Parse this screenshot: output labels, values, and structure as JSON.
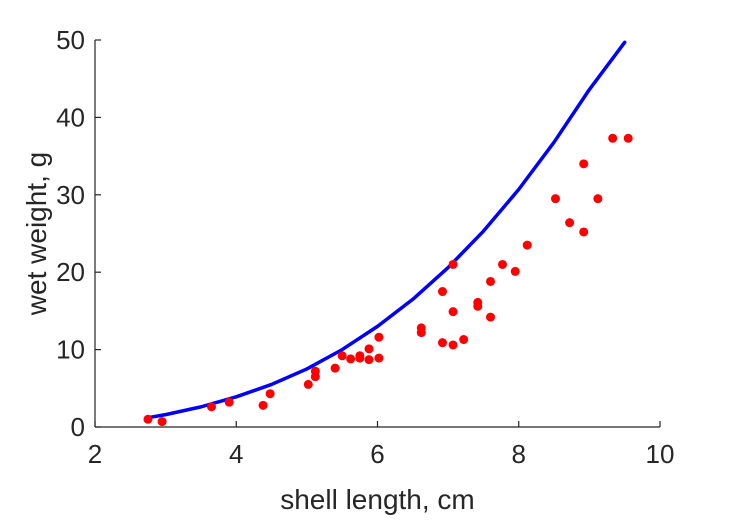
{
  "chart_data": {
    "type": "scatter",
    "title": "",
    "xlabel": "shell length, cm",
    "ylabel": "wet weight, g",
    "xlim": [
      2,
      10
    ],
    "ylim": [
      0,
      50
    ],
    "xticks": [
      2,
      4,
      6,
      8,
      10
    ],
    "yticks": [
      0,
      10,
      20,
      30,
      40,
      50
    ],
    "grid": false,
    "series": [
      {
        "kind": "points",
        "color": "#ff0000",
        "x": [
          2.75,
          2.95,
          3.65,
          3.9,
          4.38,
          4.48,
          5.02,
          5.12,
          5.12,
          5.4,
          5.5,
          5.62,
          5.75,
          5.75,
          5.88,
          5.88,
          6.02,
          6.02,
          6.62,
          6.62,
          6.92,
          6.92,
          7.07,
          7.07,
          7.07,
          7.22,
          7.42,
          7.42,
          7.6,
          7.6,
          7.77,
          7.95,
          8.12,
          8.52,
          8.72,
          8.92,
          8.92,
          9.12,
          9.33,
          9.55
        ],
        "y": [
          1.0,
          0.7,
          2.6,
          3.2,
          2.8,
          4.3,
          5.5,
          6.5,
          7.2,
          7.6,
          9.2,
          8.8,
          8.9,
          9.2,
          8.7,
          10.1,
          8.9,
          11.6,
          12.2,
          12.8,
          10.9,
          17.5,
          10.6,
          14.9,
          21.0,
          11.3,
          15.6,
          16.1,
          14.2,
          18.8,
          21.0,
          20.1,
          23.5,
          29.5,
          26.4,
          25.2,
          34.0,
          29.5,
          37.3,
          37.3
        ]
      },
      {
        "kind": "line",
        "color": "#0000ff",
        "x": [
          2.75,
          3.0,
          3.5,
          4.0,
          4.5,
          5.0,
          5.5,
          6.0,
          6.5,
          7.0,
          7.5,
          8.0,
          8.5,
          9.0,
          9.5
        ],
        "y": [
          1.2,
          1.6,
          2.6,
          3.9,
          5.5,
          7.5,
          10.0,
          13.0,
          16.5,
          20.6,
          25.3,
          30.7,
          36.8,
          43.6,
          49.7
        ]
      }
    ]
  }
}
